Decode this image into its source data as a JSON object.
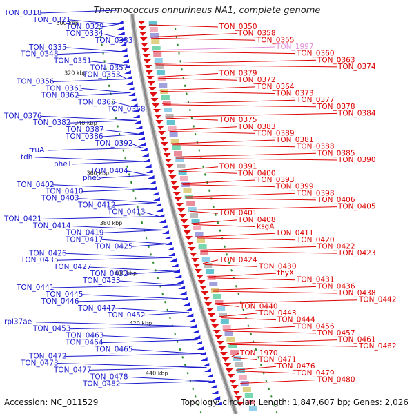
{
  "title": "Thermococcus onnurineus NA1, complete genome",
  "footer": {
    "accession": "Accession: NC_011529",
    "topology": "Topology: circular; Length: 1,847,607 bp; Genes: 2,026"
  },
  "colors": {
    "left_labels": "#1a1acc",
    "right_labels": "#dd0000",
    "pink_label": "#e090d8",
    "backbone": "#8a8a8a",
    "scale_marks": "#2a8a2a"
  },
  "kbp_ticks": [
    "300 kbp",
    "320 kbp",
    "340 kbp",
    "360 kbp",
    "380 kbp",
    "400 kbp",
    "420 kbp",
    "440 kbp"
  ],
  "left_labels": [
    "TON_0318",
    "TON_0321",
    "TON_0329",
    "TON_0334",
    "TON_0333",
    "TON_0335",
    "TON_0348",
    "TON_0351",
    "TON_0357",
    "TON_0353",
    "TON_0356",
    "TON_0361",
    "TON_0362",
    "TON_0365",
    "TON_0368",
    "TON_0376",
    "TON_0382",
    "TON_0387",
    "TON_0386",
    "TON_0392",
    "truA",
    "tdh",
    "pheT",
    "TON_0404",
    "pheS",
    "TON_0402",
    "TON_0410",
    "TON_0403",
    "TON_0412",
    "TON_0413",
    "TON_0421",
    "TON_0414",
    "TON_0419",
    "TON_0417",
    "TON_0425",
    "TON_0426",
    "TON_0435",
    "TON_0427",
    "TON_0432",
    "TON_0433",
    "TON_0441",
    "TON_0445",
    "TON_0446",
    "TON_0447",
    "TON_0452",
    "rpl37ae",
    "TON_0453",
    "TON_0463",
    "TON_0464",
    "TON_0465",
    "TON_0472",
    "TON_0473",
    "TON_0477",
    "TON_0478",
    "TON_0482"
  ],
  "right_labels": [
    "TON_0350",
    "TON_0358",
    "TON_0355",
    "TON_1997",
    "TON_0360",
    "TON_0363",
    "TON_0374",
    "TON_0379",
    "TON_0372",
    "TON_0364",
    "TON_0373",
    "TON_0377",
    "TON_0378",
    "TON_0384",
    "TON_0375",
    "TON_0383",
    "TON_0389",
    "TON_0381",
    "TON_0388",
    "TON_0385",
    "TON_0390",
    "TON_0391",
    "TON_0400",
    "TON_0393",
    "TON_0399",
    "TON_0398",
    "TON_0406",
    "TON_0405",
    "TON_0401",
    "TON_0408",
    "ksgA",
    "TON_0411",
    "TON_0420",
    "TON_0422",
    "TON_0423",
    "TON_0424",
    "TON_0430",
    "thyX",
    "TON_0431",
    "TON_0436",
    "TON_0438",
    "TON_0442",
    "TON_0440",
    "TON_0443",
    "TON_0444",
    "TON_0456",
    "TON_0457",
    "TON_0461",
    "TON_0462",
    "TON_1970",
    "TON_0471",
    "TON_0476",
    "TON_0479",
    "TON_0480"
  ]
}
